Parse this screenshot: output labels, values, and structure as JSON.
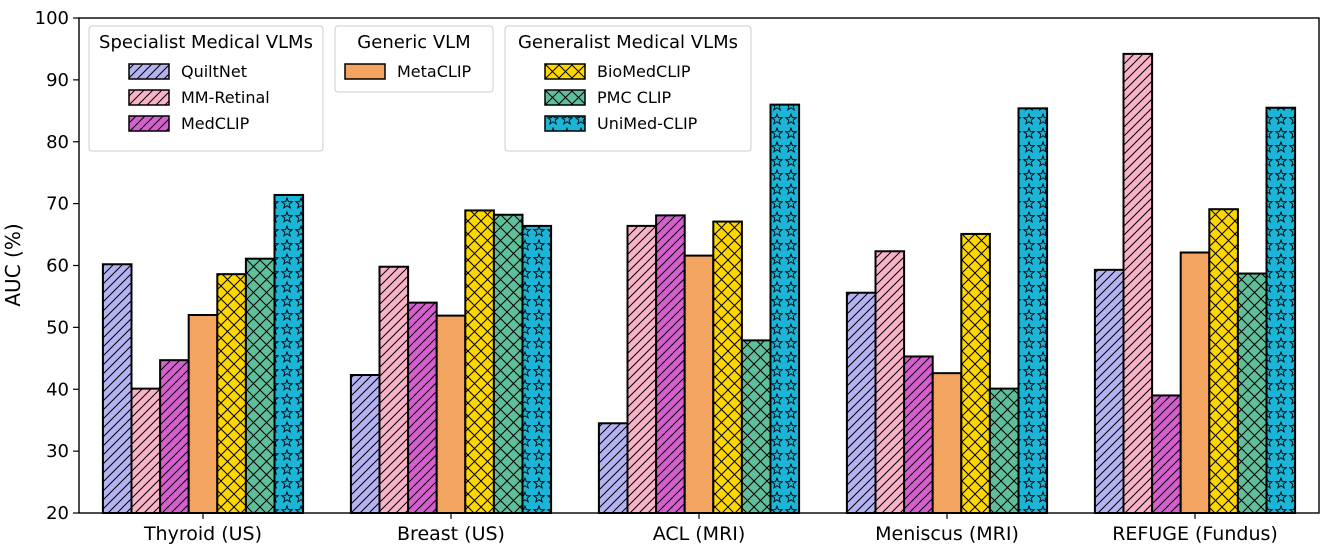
{
  "chart_data": {
    "type": "bar",
    "ylabel": "AUC (%)",
    "xlabel": "",
    "title": "",
    "ylim": [
      20,
      100
    ],
    "yticks": [
      20,
      30,
      40,
      50,
      60,
      70,
      80,
      90,
      100
    ],
    "grid": false,
    "categories": [
      "Thyroid (US)",
      "Breast (US)",
      "ACL (MRI)",
      "Meniscus (MRI)",
      "REFUGE (Fundus)"
    ],
    "series": [
      {
        "name": "QuiltNet",
        "color": "#b3b3f2",
        "pattern": "diagonal-hatch",
        "values": [
          60.2,
          42.3,
          34.5,
          55.6,
          59.3
        ]
      },
      {
        "name": "MM-Retinal",
        "color": "#f9b3c6",
        "pattern": "diagonal-hatch",
        "values": [
          40.1,
          59.8,
          66.4,
          62.3,
          94.2
        ]
      },
      {
        "name": "MedCLIP",
        "color": "#d65fd0",
        "pattern": "diagonal-hatch",
        "values": [
          44.7,
          54.0,
          68.1,
          45.3,
          39.0
        ]
      },
      {
        "name": "MetaCLIP",
        "color": "#f4a461",
        "pattern": "none",
        "values": [
          52.0,
          51.9,
          61.6,
          42.6,
          62.1
        ]
      },
      {
        "name": "BioMedCLIP",
        "color": "#ffd700",
        "pattern": "cross-hatch",
        "values": [
          58.6,
          68.9,
          67.1,
          65.1,
          69.1
        ]
      },
      {
        "name": "PMC CLIP",
        "color": "#5fbf9b",
        "pattern": "cross-hatch",
        "values": [
          61.1,
          68.2,
          47.9,
          40.1,
          58.7
        ]
      },
      {
        "name": "UniMed-CLIP",
        "color": "#1bb5d8",
        "pattern": "stars",
        "values": [
          71.4,
          66.4,
          86.0,
          85.4,
          85.5
        ]
      }
    ],
    "legend": {
      "placement": "top-left",
      "groups": [
        {
          "title": "Specialist Medical VLMs",
          "items": [
            "QuiltNet",
            "MM-Retinal",
            "MedCLIP"
          ]
        },
        {
          "title": "Generic VLM",
          "items": [
            "MetaCLIP"
          ]
        },
        {
          "title": "Generalist Medical VLMs",
          "items": [
            "BioMedCLIP",
            "PMC CLIP",
            "UniMed-CLIP"
          ]
        }
      ]
    }
  }
}
